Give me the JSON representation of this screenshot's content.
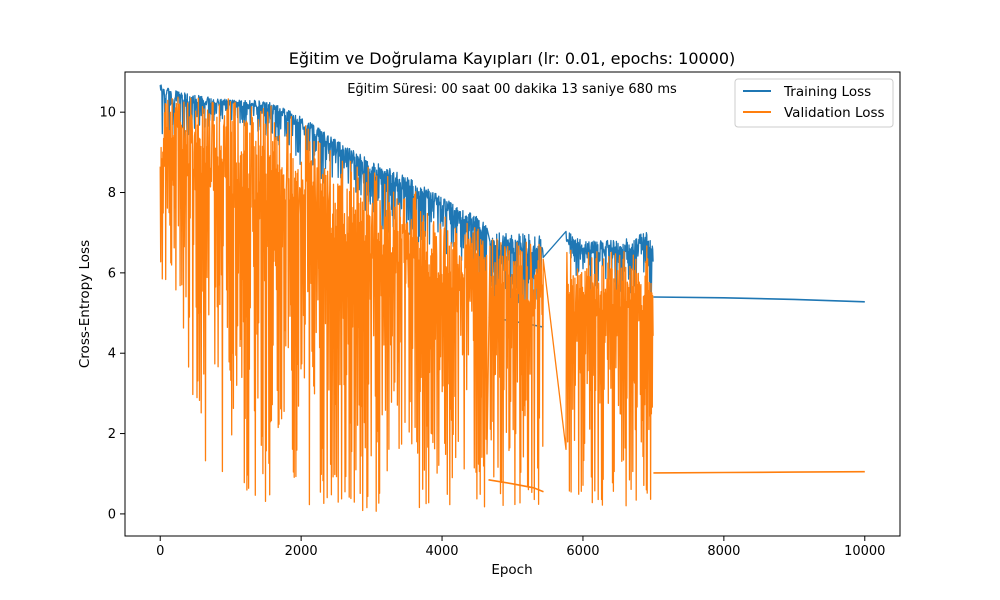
{
  "chart_data": {
    "type": "line",
    "title": "Eğitim ve Doğrulama Kayıpları (lr: 0.01, epochs: 10000)",
    "annotation": "Eğitim Süresi: 00 saat 00 dakika 13 saniye 680 ms",
    "xlabel": "Epoch",
    "ylabel": "Cross-Entropy Loss",
    "xlim": [
      -500,
      10500
    ],
    "ylim": [
      -0.55,
      11.0
    ],
    "xticks": [
      0,
      2000,
      4000,
      6000,
      8000,
      10000
    ],
    "yticks": [
      0,
      2,
      4,
      6,
      8,
      10
    ],
    "grid": false,
    "legend_position": "top-right",
    "series": [
      {
        "name": "Training Loss",
        "color": "#1f77b4",
        "x": [
          0,
          100,
          300,
          600,
          1000,
          1500,
          2000,
          2500,
          3000,
          3500,
          4000,
          4300,
          4500,
          4620,
          4660,
          5000,
          5300,
          5440,
          5760,
          5800,
          6000,
          6300,
          6600,
          6900,
          7000,
          8000,
          9000,
          10000
        ],
        "upper": [
          10.7,
          10.6,
          10.5,
          10.4,
          10.3,
          10.3,
          9.9,
          9.3,
          8.8,
          8.4,
          7.9,
          7.6,
          7.4,
          7.2,
          7.0,
          7.0,
          7.0,
          6.9,
          7.1,
          7.0,
          6.8,
          6.8,
          6.9,
          7.0,
          6.8,
          null,
          null,
          null
        ],
        "lower": [
          9.3,
          8.7,
          9.2,
          9.6,
          9.8,
          9.4,
          8.6,
          7.8,
          7.2,
          6.7,
          6.5,
          6.3,
          6.0,
          5.6,
          4.9,
          4.8,
          4.7,
          4.7,
          5.8,
          5.8,
          5.5,
          5.4,
          5.3,
          5.2,
          5.3,
          null,
          null,
          null
        ],
        "trend": [
          null,
          null,
          null,
          null,
          null,
          null,
          null,
          null,
          null,
          null,
          null,
          null,
          null,
          null,
          4.9,
          4.8,
          4.7,
          4.65,
          null,
          null,
          null,
          null,
          null,
          null,
          5.4,
          5.38,
          5.34,
          5.28
        ]
      },
      {
        "name": "Validation Loss",
        "color": "#ff7f0e",
        "x": [
          0,
          100,
          300,
          600,
          1000,
          1500,
          2000,
          2500,
          3000,
          3500,
          4000,
          4300,
          4500,
          4620,
          4660,
          5000,
          5300,
          5440,
          5760,
          5800,
          6000,
          6300,
          6600,
          6900,
          7000,
          8000,
          9000,
          10000
        ],
        "upper": [
          10.4,
          10.4,
          10.4,
          10.4,
          10.35,
          10.3,
          9.8,
          8.9,
          8.6,
          8.2,
          7.5,
          7.3,
          7.2,
          7.0,
          6.9,
          6.9,
          6.8,
          6.7,
          6.6,
          6.6,
          6.6,
          6.5,
          6.6,
          6.7,
          6.5,
          null,
          null,
          null
        ],
        "lower": [
          2.5,
          6.7,
          4.6,
          1.4,
          0.4,
          0.2,
          0.1,
          0.05,
          0.05,
          0.05,
          0.1,
          0.1,
          0.1,
          0.1,
          0.1,
          0.1,
          0.1,
          0.1,
          0.1,
          0.1,
          0.1,
          0.1,
          0.1,
          0.1,
          0.1,
          null,
          null,
          null
        ],
        "trend": [
          null,
          null,
          null,
          null,
          null,
          null,
          null,
          null,
          null,
          null,
          null,
          null,
          null,
          null,
          0.85,
          0.75,
          0.65,
          0.55,
          null,
          null,
          null,
          null,
          null,
          null,
          1.02,
          1.03,
          1.04,
          1.05
        ]
      }
    ]
  }
}
